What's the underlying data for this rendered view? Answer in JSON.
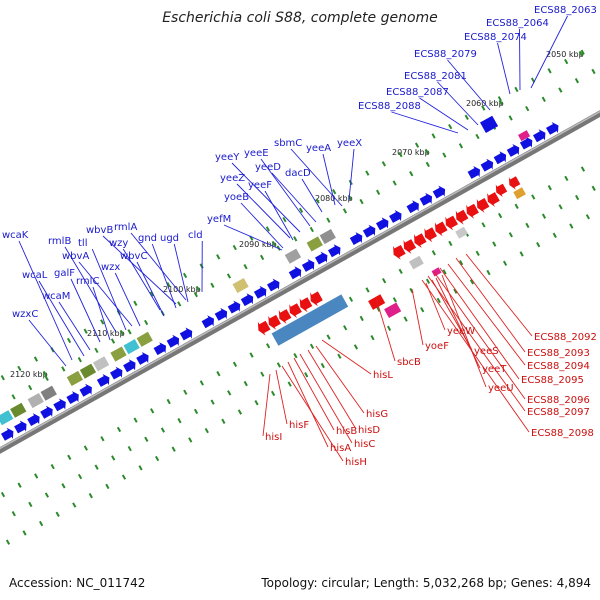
{
  "title": "Escherichia coli S88, complete genome",
  "footer": {
    "accession": "Accession: NC_011742",
    "topology": "Topology: circular; Length: 5,032,268 bp; Genes: 4,894"
  },
  "kbp_ticks": [
    "2050 kbp",
    "2060 kbp",
    "2070 kbp",
    "2080 kbp",
    "2090 kbp",
    "2100 kbp",
    "2110 kbp",
    "2120 kbp"
  ],
  "forward_gene_labels": [
    "ECS88_2063",
    "ECS88_2064",
    "ECS88_2074",
    "ECS88_2079",
    "ECS88_2081",
    "ECS88_2087",
    "ECS88_2088",
    "yeeX",
    "sbmC",
    "yeeA",
    "dacD",
    "yeeY",
    "yeeE",
    "yeeD",
    "yeeZ",
    "yeeF",
    "yoeB",
    "yefM",
    "rmlA",
    "wbvB",
    "gnd",
    "ugd",
    "cld",
    "wzy",
    "wbvC",
    "rmlB",
    "tll",
    "wbvA",
    "wzx",
    "galF",
    "rmlC",
    "wcaK",
    "wcaL",
    "wcaM",
    "wzxC"
  ],
  "reverse_gene_labels": [
    "ECS88_2092",
    "ECS88_2093",
    "ECS88_2094",
    "ECS88_2095",
    "ECS88_2096",
    "ECS88_2097",
    "ECS88_2098",
    "yeeW",
    "yeeS",
    "yeeT",
    "yeeU",
    "yoeF",
    "sbcB",
    "hisL",
    "hisG",
    "hisD",
    "hisC",
    "hisB",
    "hisA",
    "hisH",
    "hisF",
    "hisI"
  ],
  "colors": {
    "forward_cds": "#1010e0",
    "reverse_cds": "#e81010",
    "forward_label": "#1a1acc",
    "reverse_label": "#cc1010",
    "backbone": "#888888",
    "tick": "#2a8a2a"
  }
}
